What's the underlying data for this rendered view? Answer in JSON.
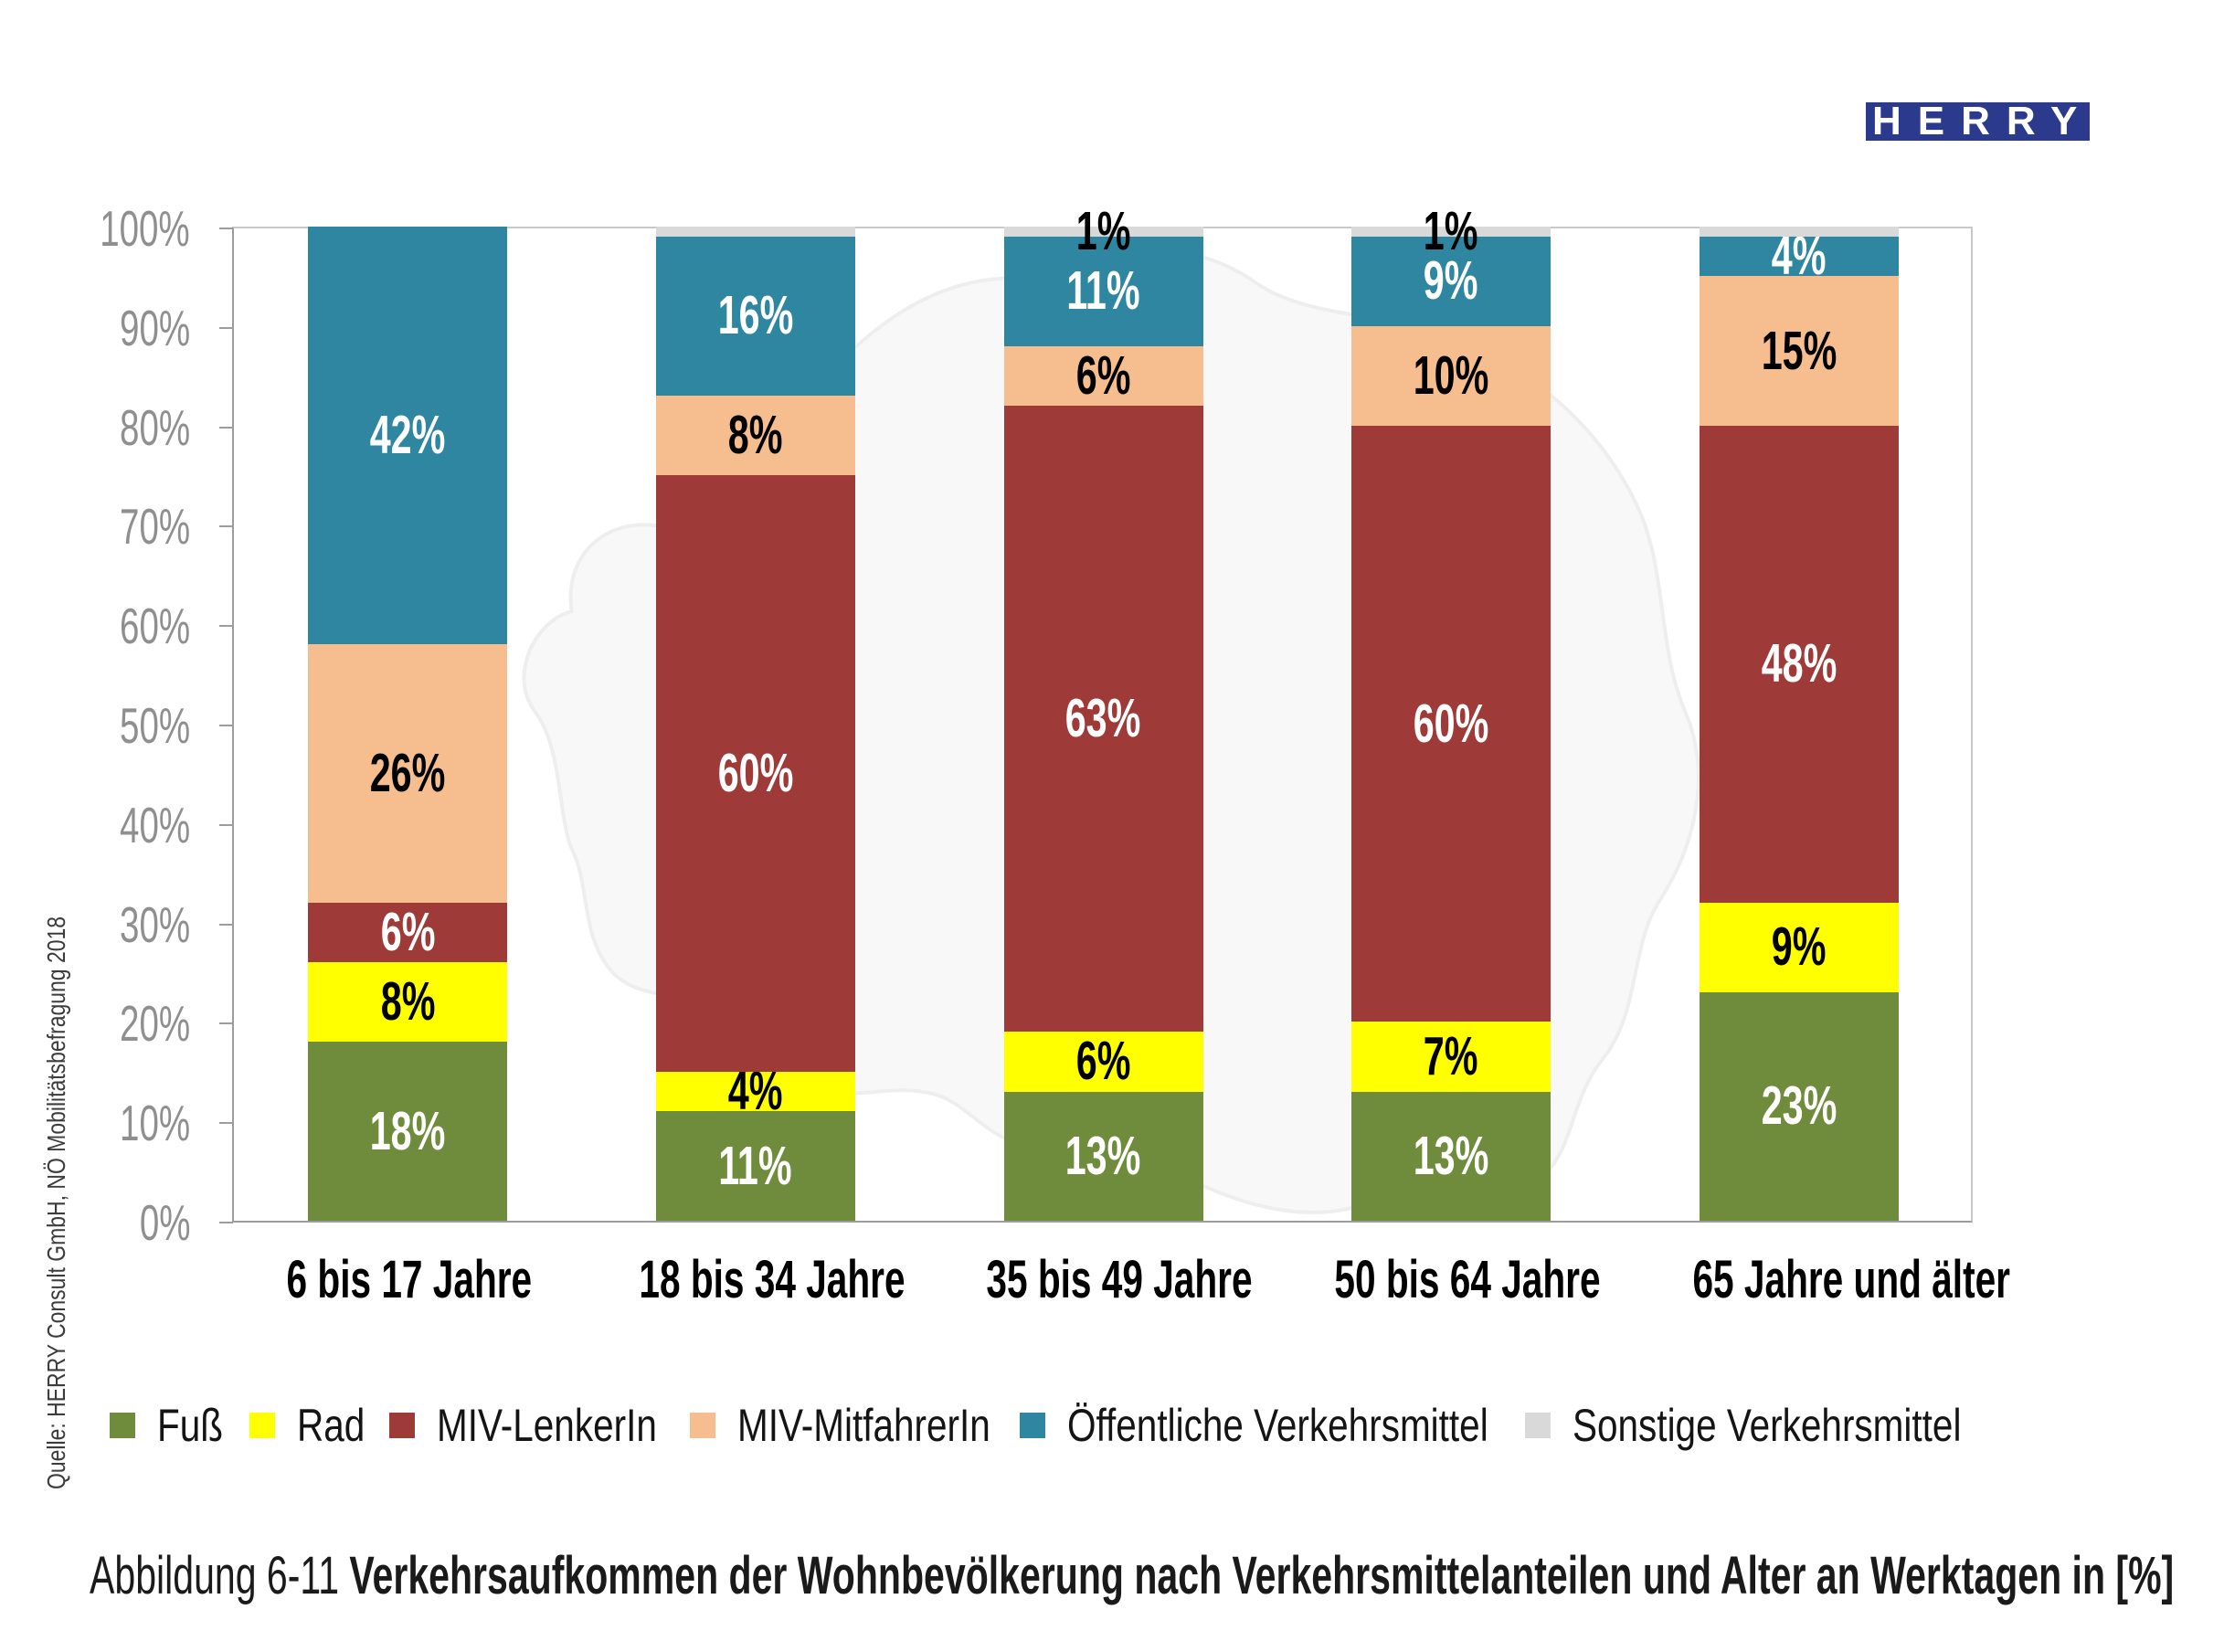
{
  "logo": {
    "text": "HERRY",
    "bg_color": "#2b3a8c",
    "text_color": "#ffffff"
  },
  "source_note": "Quelle: HERRY Consult GmbH, NÖ Mobilitätsbefragung 2018",
  "caption": {
    "prefix": "Abbildung 6-11",
    "title": "Verkehrsaufkommen der Wohnbevölkerung nach Verkehrsmittelanteilen und Alter an Werktagen in [%]"
  },
  "chart_data": {
    "type": "bar",
    "stacked": true,
    "units": "percent",
    "title": "",
    "xlabel": "",
    "ylabel": "",
    "ylim": [
      0,
      100
    ],
    "ytick_labels": [
      "0%",
      "10%",
      "20%",
      "30%",
      "40%",
      "50%",
      "60%",
      "70%",
      "80%",
      "90%",
      "100%"
    ],
    "grid": "top-line-only",
    "legend_position": "bottom",
    "categories": [
      "6 bis 17 Jahre",
      "18 bis 34 Jahre",
      "35 bis 49 Jahre",
      "50 bis 64 Jahre",
      "65 Jahre und älter"
    ],
    "series": [
      {
        "name": "Fuß",
        "color": "#6e8c3c",
        "label_color": "#ffffff",
        "values": [
          18,
          11,
          13,
          13,
          23
        ],
        "labels": [
          "18%",
          "11%",
          "13%",
          "13%",
          "23%"
        ]
      },
      {
        "name": "Rad",
        "color": "#ffff00",
        "label_color": "#000000",
        "values": [
          8,
          4,
          6,
          7,
          9
        ],
        "labels": [
          "8%",
          "4%",
          "6%",
          "7%",
          "9%"
        ]
      },
      {
        "name": "MIV-LenkerIn",
        "color": "#9e3b38",
        "label_color": "#ffffff",
        "values": [
          6,
          60,
          63,
          60,
          48
        ],
        "labels": [
          "6%",
          "60%",
          "63%",
          "60%",
          "48%"
        ]
      },
      {
        "name": "MIV-MitfahrerIn",
        "color": "#f6be8e",
        "label_color": "#000000",
        "values": [
          26,
          8,
          6,
          10,
          15
        ],
        "labels": [
          "26%",
          "8%",
          "6%",
          "10%",
          "15%"
        ]
      },
      {
        "name": "Öffentliche Verkehrsmittel",
        "color": "#2e86a0",
        "label_color": "#ffffff",
        "values": [
          42,
          16,
          11,
          9,
          4
        ],
        "labels": [
          "42%",
          "16%",
          "11%",
          "9%",
          "4%"
        ]
      },
      {
        "name": "Sonstige Verkehrsmittel",
        "color": "#d9d9d9",
        "label_color": "#000000",
        "values": [
          0,
          1,
          1,
          1,
          1
        ],
        "labels": [
          "",
          "",
          "1%",
          "1%",
          ""
        ]
      }
    ]
  }
}
